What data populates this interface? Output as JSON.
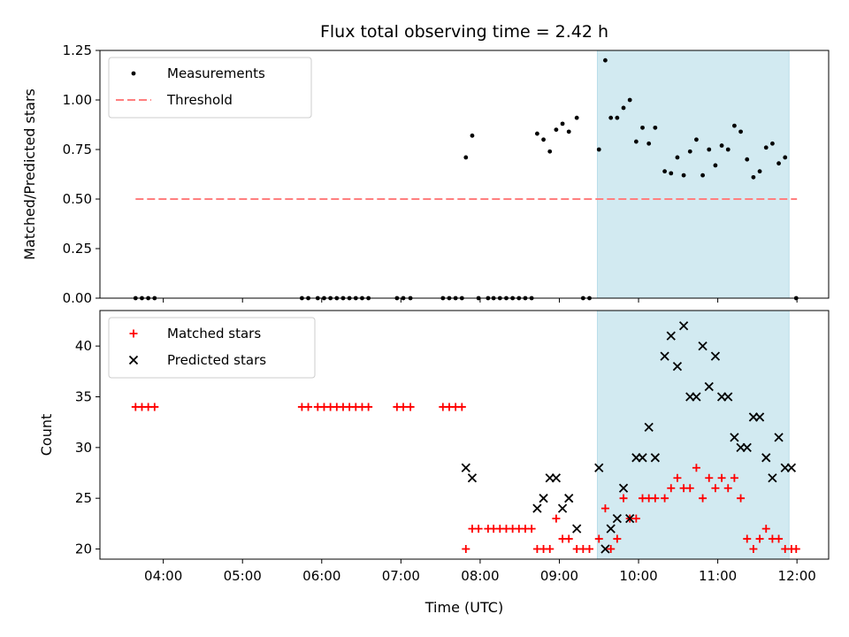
{
  "chart_data": {
    "type": "scatter",
    "title": "Flux total observing time = 2.42 h",
    "xlabel": "Time (UTC)",
    "x_axis": {
      "unit": "hours UTC",
      "range": [
        3.2,
        12.4
      ],
      "ticks": [
        4,
        5,
        6,
        7,
        8,
        9,
        10,
        11,
        12
      ],
      "tick_labels": [
        "04:00",
        "05:00",
        "06:00",
        "07:00",
        "08:00",
        "09:00",
        "10:00",
        "11:00",
        "12:00"
      ]
    },
    "highlight_span": {
      "x_start": 9.48,
      "x_end": 11.9,
      "color": "#add8e6"
    },
    "panels": [
      {
        "ylabel": "Matched/Predicted stars",
        "ylim": [
          0,
          1.25
        ],
        "yticks": [
          0,
          0.25,
          0.5,
          0.75,
          1.0,
          1.25
        ],
        "ytick_labels": [
          "0.00",
          "0.25",
          "0.50",
          "0.75",
          "1.00",
          "1.25"
        ],
        "legend_position": "upper-left",
        "series": [
          {
            "name": "Measurements",
            "marker": "dot",
            "color": "#000000",
            "x": [
              3.65,
              3.73,
              3.81,
              3.89,
              5.75,
              5.83,
              5.95,
              6.03,
              6.11,
              6.19,
              6.27,
              6.35,
              6.43,
              6.51,
              6.59,
              6.95,
              7.03,
              7.12,
              7.53,
              7.61,
              7.69,
              7.77,
              7.82,
              7.9,
              7.98,
              8.1,
              8.17,
              8.25,
              8.33,
              8.41,
              8.49,
              8.57,
              8.65,
              8.72,
              8.8,
              8.88,
              8.96,
              9.04,
              9.12,
              9.22,
              9.3,
              9.38,
              9.5,
              9.58,
              9.65,
              9.73,
              9.81,
              9.89,
              9.97,
              10.05,
              10.13,
              10.21,
              10.33,
              10.41,
              10.49,
              10.57,
              10.65,
              10.73,
              10.81,
              10.89,
              10.97,
              11.05,
              11.13,
              11.21,
              11.29,
              11.37,
              11.45,
              11.53,
              11.61,
              11.69,
              11.77,
              11.85,
              11.99
            ],
            "y": [
              0,
              0,
              0,
              0,
              0,
              0,
              0,
              0,
              0,
              0,
              0,
              0,
              0,
              0,
              0,
              0,
              0,
              0,
              0,
              0,
              0,
              0,
              0.71,
              0.82,
              0,
              0,
              0,
              0,
              0,
              0,
              0,
              0,
              0,
              0.83,
              0.8,
              0.74,
              0.85,
              0.88,
              0.84,
              0.91,
              0,
              0,
              0.75,
              1.2,
              0.91,
              0.91,
              0.96,
              1.0,
              0.79,
              0.86,
              0.78,
              0.86,
              0.64,
              0.63,
              0.71,
              0.62,
              0.74,
              0.8,
              0.62,
              0.75,
              0.67,
              0.77,
              0.75,
              0.87,
              0.84,
              0.7,
              0.61,
              0.64,
              0.76,
              0.78,
              0.68,
              0.71,
              0
            ]
          },
          {
            "name": "Threshold",
            "marker": "dashed-line",
            "color": "#ff7f7f",
            "x": [
              3.65,
              12.0
            ],
            "y": [
              0.5,
              0.5
            ]
          }
        ]
      },
      {
        "ylabel": "Count",
        "ylim": [
          19,
          43.5
        ],
        "yticks": [
          20,
          25,
          30,
          35,
          40
        ],
        "ytick_labels": [
          "20",
          "25",
          "30",
          "35",
          "40"
        ],
        "legend_position": "upper-left",
        "series": [
          {
            "name": "Matched stars",
            "marker": "plus",
            "color": "#ff0000",
            "x": [
              3.65,
              3.73,
              3.81,
              3.89,
              5.75,
              5.83,
              5.95,
              6.03,
              6.11,
              6.19,
              6.27,
              6.35,
              6.43,
              6.51,
              6.59,
              6.95,
              7.03,
              7.12,
              7.53,
              7.61,
              7.69,
              7.77,
              7.82,
              7.9,
              7.98,
              8.1,
              8.17,
              8.25,
              8.33,
              8.41,
              8.49,
              8.57,
              8.65,
              8.72,
              8.8,
              8.88,
              8.96,
              9.04,
              9.12,
              9.22,
              9.3,
              9.38,
              9.5,
              9.58,
              9.65,
              9.73,
              9.81,
              9.89,
              9.97,
              10.05,
              10.13,
              10.21,
              10.33,
              10.41,
              10.49,
              10.57,
              10.65,
              10.73,
              10.81,
              10.89,
              10.97,
              11.05,
              11.13,
              11.21,
              11.29,
              11.37,
              11.45,
              11.53,
              11.61,
              11.69,
              11.77,
              11.85,
              11.93,
              11.99
            ],
            "y": [
              34,
              34,
              34,
              34,
              34,
              34,
              34,
              34,
              34,
              34,
              34,
              34,
              34,
              34,
              34,
              34,
              34,
              34,
              34,
              34,
              34,
              34,
              20,
              22,
              22,
              22,
              22,
              22,
              22,
              22,
              22,
              22,
              22,
              20,
              20,
              20,
              23,
              21,
              21,
              20,
              20,
              20,
              21,
              24,
              20,
              21,
              25,
              23,
              23,
              25,
              25,
              25,
              25,
              26,
              27,
              26,
              26,
              28,
              25,
              27,
              26,
              27,
              26,
              27,
              25,
              21,
              20,
              21,
              22,
              21,
              21,
              20,
              20,
              20
            ]
          },
          {
            "name": "Predicted stars",
            "marker": "x",
            "color": "#000000",
            "x": [
              7.82,
              7.9,
              8.72,
              8.8,
              8.88,
              8.96,
              9.04,
              9.12,
              9.22,
              9.5,
              9.58,
              9.65,
              9.73,
              9.81,
              9.89,
              9.97,
              10.05,
              10.13,
              10.21,
              10.33,
              10.41,
              10.49,
              10.57,
              10.65,
              10.73,
              10.81,
              10.89,
              10.97,
              11.05,
              11.13,
              11.21,
              11.29,
              11.37,
              11.45,
              11.53,
              11.61,
              11.69,
              11.77,
              11.85,
              11.93
            ],
            "y": [
              28,
              27,
              24,
              25,
              27,
              27,
              24,
              25,
              22,
              28,
              20,
              22,
              23,
              26,
              23,
              29,
              29,
              32,
              29,
              39,
              41,
              38,
              42,
              35,
              35,
              40,
              36,
              39,
              35,
              35,
              31,
              30,
              30,
              33,
              33,
              29,
              27,
              31,
              28,
              28
            ]
          }
        ]
      }
    ]
  }
}
